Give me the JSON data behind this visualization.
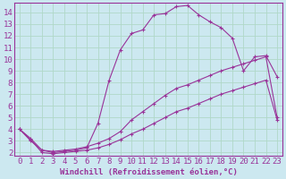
{
  "xlabel": "Windchill (Refroidissement éolien,°C)",
  "background_color": "#cce8f0",
  "grid_color": "#b0d8c8",
  "line_color": "#993399",
  "xlim": [
    -0.5,
    23.5
  ],
  "ylim": [
    1.7,
    14.8
  ],
  "xticks": [
    0,
    1,
    2,
    3,
    4,
    5,
    6,
    7,
    8,
    9,
    10,
    11,
    12,
    13,
    14,
    15,
    16,
    17,
    18,
    19,
    20,
    21,
    22,
    23
  ],
  "yticks": [
    2,
    3,
    4,
    5,
    6,
    7,
    8,
    9,
    10,
    11,
    12,
    13,
    14
  ],
  "line1_x": [
    0,
    1,
    2,
    3,
    4,
    5,
    6,
    7,
    8,
    9,
    10,
    11,
    12,
    13,
    14,
    15,
    16,
    17,
    18,
    19,
    20,
    21,
    22,
    23
  ],
  "line1_y": [
    4.0,
    3.0,
    2.2,
    2.0,
    2.1,
    2.2,
    2.4,
    4.5,
    8.2,
    10.8,
    12.2,
    12.5,
    13.8,
    13.9,
    14.5,
    14.6,
    13.8,
    13.2,
    12.7,
    11.8,
    9.0,
    10.2,
    10.3,
    8.5
  ],
  "line2_x": [
    0,
    1,
    2,
    3,
    4,
    5,
    6,
    7,
    8,
    9,
    10,
    11,
    12,
    13,
    14,
    15,
    16,
    17,
    18,
    19,
    20,
    21,
    22,
    23
  ],
  "line2_y": [
    4.0,
    3.2,
    2.2,
    2.1,
    2.2,
    2.3,
    2.5,
    2.8,
    3.2,
    3.8,
    4.8,
    5.5,
    6.2,
    6.9,
    7.5,
    7.8,
    8.2,
    8.6,
    9.0,
    9.3,
    9.6,
    9.9,
    10.2,
    5.0
  ],
  "line3_x": [
    0,
    1,
    2,
    3,
    4,
    5,
    6,
    7,
    8,
    9,
    10,
    11,
    12,
    13,
    14,
    15,
    16,
    17,
    18,
    19,
    20,
    21,
    22,
    23
  ],
  "line3_y": [
    4.0,
    3.1,
    2.0,
    1.9,
    2.0,
    2.1,
    2.2,
    2.4,
    2.7,
    3.1,
    3.6,
    4.0,
    4.5,
    5.0,
    5.5,
    5.8,
    6.2,
    6.6,
    7.0,
    7.3,
    7.6,
    7.9,
    8.2,
    4.8
  ],
  "fontsize_xlabel": 6.5,
  "fontsize_ticks": 6.5
}
